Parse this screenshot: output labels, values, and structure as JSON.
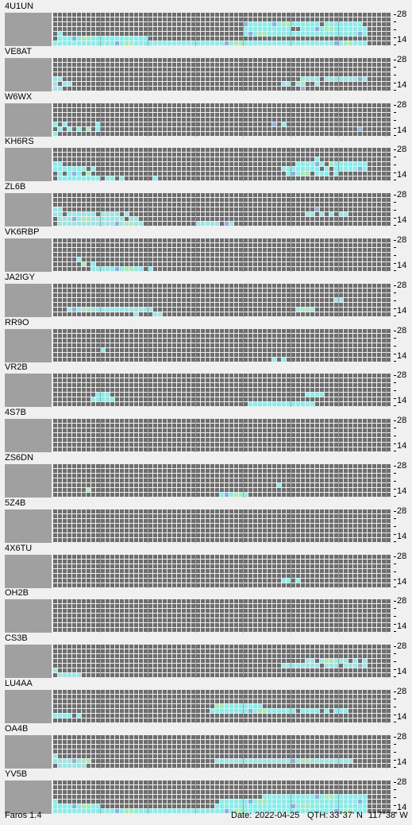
{
  "app": {
    "name_version": "Faros 1.4"
  },
  "status": {
    "date_label": "Date:",
    "date": "2022-04-25",
    "qth_label": "QTH:",
    "qth_lat": "33°37' N",
    "qth_lon": "117°38' W"
  },
  "band_axis": {
    "top_label": "28",
    "bottom_label": "14"
  },
  "colors": {
    "background": "#f0f0f0",
    "empty_slot": "#6e6e6e",
    "map_placeholder": "#a0a0a0",
    "hour_divider": "#a8a8a8",
    "detect_cyan": "#7cf3ee",
    "detect_green": "#9cf0b0",
    "detect_blue": "#86b0f0",
    "detect_violet": "#8080e0",
    "no_data_grey": "#a0a0a0"
  },
  "beacons": [
    {
      "callsign": "4U1UN",
      "rows": [
        "0000000000000000000000000000000000000000b1111111111111110111111110",
        "0000000000000000000000000000000000000000111111111100111111111111110",
        "0100000000000000000000000000000000000000111111111111111111111111110",
        "0111111111111111111100000000000000000000000000000000000000000000000",
        "1111111111111111111111111111111111111111111111111111111111111111110"
      ]
    },
    {
      "callsign": "VE8AT",
      "rows": [
        "00000000000000000000000000000000000000000000000000000000000000000000",
        "0000000000000000000000000000000000000000000000000000000000000000000",
        "1100000000000000000000000000000000000000000000000000111101111111110",
        "1011000000000000000000000000000000000000000000001101100100000000000",
        "1100000000000000000000000000000000000000000000000000b00000000000000"
      ]
    },
    {
      "callsign": "W6WX",
      "rows": [
        "0000000000000000000000000000000000000000000000000000000000000000000",
        "0000000000000000000000000000000000000000000000000000000000000000000",
        "1010000001000000000000000000000000000000000000b01000000000000000000",
        "0101010101000000000000000000000000000000000000000000000000000000b00",
        "1000000000000000000000000000000000000000000000000000000000000000000"
      ]
    },
    {
      "callsign": "KH6RS",
      "rows": [
        "0000000000000000000000000000000000000000000000000000000100000000000",
        "1100000000000000000000000000000000000000000000000001111110111111110",
        "1111111010000000000000000000000000000000000000001111111101011111110",
        "0101110100000000000000000000000000000000000000000111110111010000000",
        "0111111111011010000001000000000000000000000000000000000000000000000"
      ]
    },
    {
      "callsign": "ZL6B",
      "rows": [
        "0000000000000000000000000000000000000000000000000000000000000000000",
        "1100000000000000000000000000000000000000000000000000000100000000000",
        "1101111110111101000000000000000000000000000000000000011010101100000",
        "0111111111111110110000000000000000000000000000000000000000000000000",
        "0111111111111111111000000000001111101100000000000000000000000000000"
      ]
    },
    {
      "callsign": "VK6RBP",
      "rows": [
        "0000000000000000000000000000000000000000000000000000000000000000000",
        "0000000000000000000000000000000000000000000000000000000000000000000",
        "0000010000000000000000000000000000000000000000000000000000000000000",
        "0000001010000000000000000000000000000000000000000000000000000000000",
        "0000000011111111111010000000000000000000000000000000000000000000000"
      ]
    },
    {
      "callsign": "JA2IGY",
      "rows": [
        "0000000000000000000000000000000000000000000000000000000000000000000",
        "0000000000000000000000000000000000000000000000000000000000011000000",
        "0000000000000000000000000000000000000000000000000000000000000000000",
        "0001111111111111111110000000000000000000000000000001111000000000000",
        "0000000000000000010001100000000000000000000000000000000000000000000"
      ]
    },
    {
      "callsign": "RR9O",
      "rows": [
        "0000000000000000000000000000000000000000000000000000000000000000000",
        "0000000000000000000000000000000000000000000000000000000000000000000",
        "0000000000100000000000000000000000000000000000000000000000000000000",
        "0000000000000000000000000000000000000000000000000000000000000000000",
        "0000000000000000000000000000000000000000000000101000000000000000000"
      ]
    },
    {
      "callsign": "VR2B",
      "rows": [
        "0000000000000000000000000000000000000000000000000000000000000000000",
        "0000000000000000000000000000000000000000000000000000000000000000000",
        "0000000001110000000000000000000000000000000000000000011110000000000",
        "0000000011111000000000000000000000000000000000000000000000000000000",
        "0000000000000000000000000000000000000000011111111111111000000000000"
      ]
    },
    {
      "callsign": "4S7B",
      "rows": [
        "0000000000000000000000000000000000000000000000000000000000000000000",
        "0000000000000000000000000000000000000000000000000000000000000000000",
        "0000000000000000000000000000000000000000000000000000000000000000000",
        "0000000000000000000000000000000000000000000000000000000000000000000",
        "0000000000000000000000000000000000000000000000000000000000000000000"
      ]
    },
    {
      "callsign": "ZS6DN",
      "rows": [
        "0000000000000000000000000000000000000000000000000000000000000000000",
        "0000000000000000000000000000000000000000000000000000000000000000000",
        "0000000000000000000000000000000000000000000000010000000000000000000",
        "0000000100000000000000000000000000000000000000000000000000000000000",
        "0000000000000000000000000000000000011111100000000000000000000000000"
      ]
    },
    {
      "callsign": "5Z4B",
      "rows": [
        "0000000000000000000000000000000000000000000000000000000000000000000",
        "0000000000000000000000000000000000000000000000000000000000000000000",
        "0000000000000000000000000000000000000000000000000000000000000000000",
        "0000000000000000000000000000000000000000000000000000000000000000000",
        "0000000000000000000000000000000000000000000000000000000000000000000"
      ]
    },
    {
      "callsign": "4X6TU",
      "rows": [
        "0000000000000000000000000000000000000000000000000000000000000000000",
        "0000000000000000000000000000000000000000000000000000000000000000000",
        "0000000000000000000000000000000000000000000000000000000000000000000",
        "0000000000000000000000000000000000000000000000001101000000000000000",
        "0000000000000000000000000000000000000000000000000000000000000000000"
      ]
    },
    {
      "callsign": "OH2B",
      "rows": [
        "0000000000000000000000000000000000000000000000000000000000000000000",
        "0000000000000000000000000000000000000000000000000000000000000000000",
        "0000000000000000000000000000000000000000000000000000000000000000000",
        "0000000000000000000000000000000000000000000000000000000000000000000",
        "0000000000000000000000000000000000000000000000000000000000000000000"
      ]
    },
    {
      "callsign": "CS3B",
      "rows": [
        "0000000000000000000000000000000000000000000000000000000000000000000",
        "0000000000000000000000000000000000000000000000000000011011111101010",
        "0000000000000000000000000000000000000000000000001111111101110111110",
        "1000000000000000000000000000000000000000000000000000000000000000000",
        "0111110000000000000000000000000000000000000000000000000000000000000"
      ]
    },
    {
      "callsign": "LU4AA",
      "rows": [
        "0000000000000000000000000000000000000000000000000000000000000000000",
        "0000000000000000000000000000000000111111111100000000000000000000000",
        "0000000000000000000000000000000001111111111111111110111101011100000",
        "1111010000000000000000000000000000000000000000000000000000000000000",
        "0000000000000000000000000000000000000000000000000000000000000000000"
      ]
    },
    {
      "callsign": "OA4B",
      "rows": [
        "0000000000000000000000000000000000000000000000000000000000000000000",
        "0000000000000000000000000000000000000000000000000000000000000000000",
        "1000000000000000000000000000000000000000000000000000000000000000000",
        "1111111100000000000000000000000000111111111111111111111111111110000",
        "0111111000000000000000000000000000000000000000000000000000000000000"
      ]
    },
    {
      "callsign": "YV5B",
      "rows": [
        "0000000000000000000000000000000000000000000000000000000000000000000",
        "0000000000000000000000000000000000000000000011111111111111111111110",
        "1000000000000000000000000000000000011111111111111111111111111111110",
        "1111111111000000000000000000000000111111111111111111111111111111110",
        "1111111111111111111111111111111111111111111111111111111111111111110"
      ]
    }
  ]
}
